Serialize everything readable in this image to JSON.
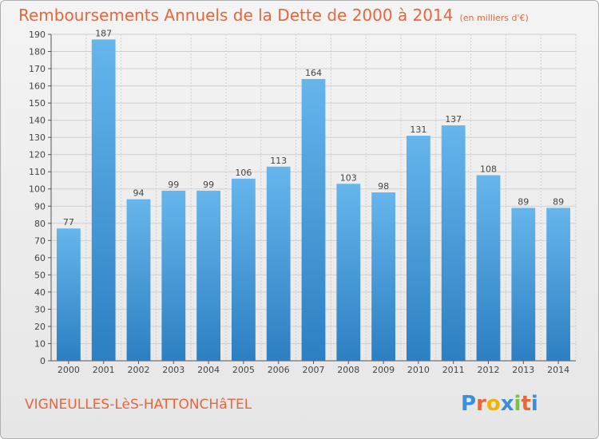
{
  "header": {
    "title": "Remboursements Annuels de la Dette de 2000 à 2014",
    "unit": "(en milliers d'€)"
  },
  "footer": {
    "commune": "VIGNEULLES-LèS-HATTONCHâTEL",
    "logo_text": "Proxiti",
    "logo_colors": [
      "#3a8fd6",
      "#e8663a",
      "#f0b400",
      "#3a8fd6",
      "#7cc242",
      "#e8663a",
      "#3a8fd6"
    ]
  },
  "colors": {
    "bar_top": "#66b6ec",
    "bar_bottom": "#2c7fc2",
    "title": "#e8663a",
    "grid": "#cfcfcf"
  },
  "chart_data": {
    "type": "bar",
    "title": "Remboursements Annuels de la Dette de 2000 à 2014",
    "subtitle": "(en milliers d'€)",
    "xlabel": "",
    "ylabel": "",
    "categories": [
      "2000",
      "2001",
      "2002",
      "2003",
      "2004",
      "2005",
      "2006",
      "2007",
      "2008",
      "2009",
      "2010",
      "2011",
      "2012",
      "2013",
      "2014"
    ],
    "values": [
      77,
      187,
      94,
      99,
      99,
      106,
      113,
      164,
      103,
      98,
      131,
      137,
      108,
      89,
      89
    ],
    "data_labels": [
      "77",
      "187",
      "94",
      "99",
      "99",
      "106",
      "113",
      "164",
      "103",
      "98",
      "131",
      "137",
      "108",
      "89",
      "89"
    ],
    "ylim": [
      0,
      190
    ],
    "yticks": [
      0,
      10,
      20,
      30,
      40,
      50,
      60,
      70,
      80,
      90,
      100,
      110,
      120,
      130,
      140,
      150,
      160,
      170,
      180,
      190
    ],
    "grid": true,
    "legend": "none"
  }
}
